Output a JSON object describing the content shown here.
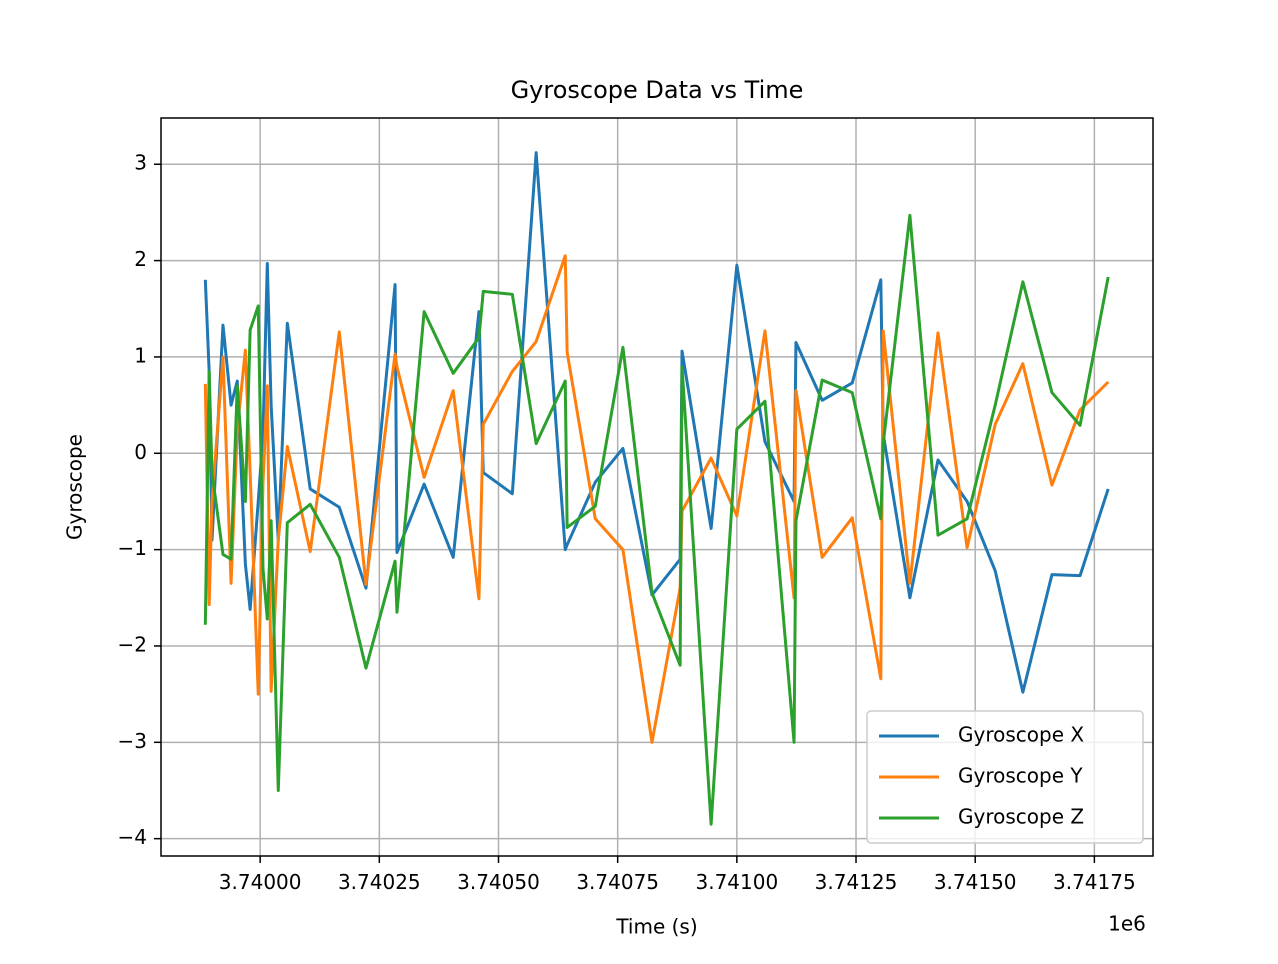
{
  "chart_data": {
    "type": "line",
    "title": "Gyroscope Data vs Time",
    "x_label": "Time (s)",
    "y_label": "Gyroscope",
    "x_offset_label": "1e6",
    "x": [
      3739885,
      3739893,
      3739899,
      3739922,
      3739939,
      3739952,
      3739969,
      3739979,
      3739996,
      3740006,
      3740015,
      3740023,
      3740038,
      3740057,
      3740105,
      3740166,
      3740222,
      3740283,
      3740287,
      3740344,
      3740405,
      3740459,
      3740468,
      3740529,
      3740579,
      3740640,
      3740644,
      3740703,
      3740761,
      3740822,
      3740881,
      3740885,
      3740946,
      3741000,
      3741059,
      3741120,
      3741124,
      3741179,
      3741242,
      3741302,
      3741307,
      3741363,
      3741422,
      3741483,
      3741542,
      3741600,
      3741661,
      3741720,
      3741779
    ],
    "series": [
      {
        "name": "Gyroscope X",
        "color": "#1f77b4",
        "values": [
          1.8,
          0.85,
          -0.9,
          1.33,
          0.5,
          0.75,
          -1.15,
          -1.62,
          -0.5,
          0.2,
          1.97,
          0.5,
          -0.9,
          1.35,
          -0.37,
          -0.56,
          -1.4,
          1.75,
          -1.03,
          -0.32,
          -1.08,
          1.47,
          -0.2,
          -0.42,
          3.12,
          -1.0,
          -0.95,
          -0.3,
          0.05,
          -1.47,
          -1.1,
          1.06,
          -0.78,
          1.95,
          0.12,
          -0.5,
          1.15,
          0.55,
          0.73,
          1.8,
          0.2,
          -1.5,
          -0.07,
          -0.5,
          -1.22,
          -2.48,
          -1.26,
          -1.27,
          -0.37
        ]
      },
      {
        "name": "Gyroscope Y",
        "color": "#ff7f0e",
        "values": [
          0.72,
          -1.57,
          -0.5,
          1.0,
          -1.35,
          0.25,
          1.07,
          -0.2,
          -2.5,
          -0.3,
          0.7,
          -2.47,
          -0.9,
          0.07,
          -1.02,
          1.26,
          -1.36,
          1.03,
          0.9,
          -0.25,
          0.65,
          -1.51,
          0.3,
          0.85,
          1.16,
          2.05,
          1.05,
          -0.68,
          -1.0,
          -3.0,
          -1.4,
          -0.6,
          -0.05,
          -0.65,
          1.27,
          -1.5,
          0.65,
          -1.08,
          -0.67,
          -2.34,
          1.27,
          -1.35,
          1.25,
          -0.98,
          0.3,
          0.93,
          -0.33,
          0.45,
          0.74
        ]
      },
      {
        "name": "Gyroscope Z",
        "color": "#2ca02c",
        "values": [
          -1.78,
          0.85,
          -0.2,
          -1.05,
          -1.1,
          0.7,
          -0.5,
          1.28,
          1.53,
          -1.2,
          -1.72,
          -0.7,
          -3.5,
          -0.72,
          -0.53,
          -1.08,
          -2.23,
          -1.12,
          -1.65,
          1.47,
          0.83,
          1.2,
          1.68,
          1.65,
          0.1,
          0.75,
          -0.77,
          -0.55,
          1.1,
          -1.45,
          -2.2,
          0.9,
          -3.85,
          0.25,
          0.54,
          -3.0,
          -0.7,
          0.76,
          0.63,
          -0.68,
          0.1,
          2.47,
          -0.85,
          -0.68,
          0.5,
          1.78,
          0.63,
          0.29,
          1.83
        ]
      }
    ],
    "xlim": [
      3739792,
      3741873
    ],
    "ylim": [
      -4.18,
      3.48
    ],
    "xticks": [
      {
        "value": 3740000,
        "label": "3.74000"
      },
      {
        "value": 3740250,
        "label": "3.74025"
      },
      {
        "value": 3740500,
        "label": "3.74050"
      },
      {
        "value": 3740750,
        "label": "3.74075"
      },
      {
        "value": 3741000,
        "label": "3.74100"
      },
      {
        "value": 3741250,
        "label": "3.74125"
      },
      {
        "value": 3741500,
        "label": "3.74150"
      },
      {
        "value": 3741750,
        "label": "3.74175"
      }
    ],
    "yticks": [
      {
        "value": -4,
        "label": "−4"
      },
      {
        "value": -3,
        "label": "−3"
      },
      {
        "value": -2,
        "label": "−2"
      },
      {
        "value": -1,
        "label": "−1"
      },
      0,
      1,
      2,
      3
    ],
    "grid": true,
    "legend": "lower right"
  }
}
